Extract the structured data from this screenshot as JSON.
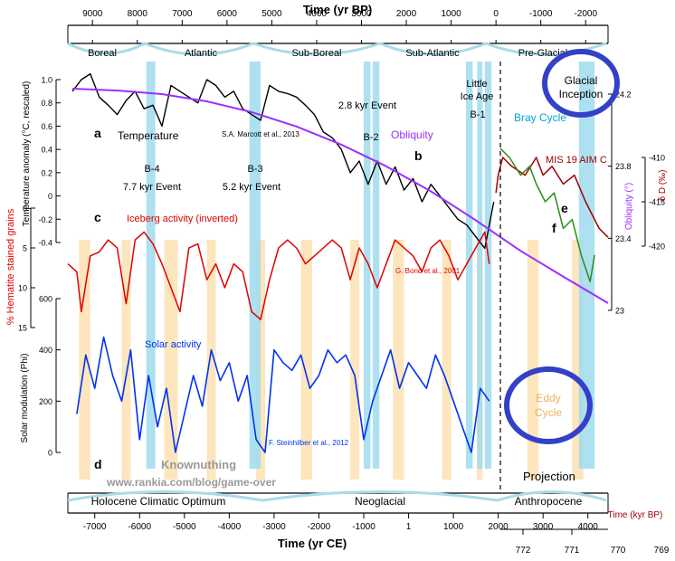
{
  "colors": {
    "temperature": "#000000",
    "obliquity": "#9b30ff",
    "iceberg": "#e00000",
    "solar": "#0033ee",
    "deuterium": "#a00000",
    "mis19_green": "#2e8b1f",
    "cold_event_band": "#9fdcee",
    "eddy_band": "#fde5bd",
    "highlight_circle": "#3340c8",
    "watermark": "#9a9a9a"
  },
  "labels": {
    "top_axis_title": "Time (yr BP)",
    "bottom_axis_title": "Time (yr CE)",
    "kyr_axis_title": "Time (kyr BP)",
    "temp_ylabel": "Temperature anomaly (°C, rescaled)",
    "hematite_ylabel": "% Hematite stained grains",
    "solar_ylabel": "Solar modulation (Phi)",
    "obliquity_ylabel": "Obliquity (°)",
    "deuterium_ylabel": "δ D (‰)",
    "panel_a": "a",
    "panel_b": "b",
    "panel_c": "c",
    "panel_d": "d",
    "panel_e": "e",
    "panel_f": "f",
    "temperature": "Temperature",
    "marcott": "S.A. Marcott et al., 2013",
    "obliquity": "Obliquity",
    "iceberg": "Iceberg activity (inverted)",
    "bond": "G. Bond et al., 2001",
    "solar": "Solar activity",
    "steinhilber": "F. Steinhilber et al., 2012",
    "b4": "B-4",
    "event_77": "7.7 kyr Event",
    "b3": "B-3",
    "event_52": "5.2 kyr Event",
    "event_28": "2.8 kyr Event",
    "b2": "B-2",
    "little_ice_age_1": "Little",
    "little_ice_age_2": "Ice Age",
    "b1": "B-1",
    "bray_cycle": "Bray Cycle",
    "mis19": "MIS 19 AIM C",
    "glacial_1": "Glacial",
    "glacial_2": "Inception",
    "eddy_1": "Eddy",
    "eddy_2": "Cycle",
    "projection": "Projection",
    "watermark_1": "Knownuthing",
    "watermark_2": "www.rankia.com/blog/game-over"
  },
  "periods_top": [
    "Boreal",
    "Atlantic",
    "Sub-Boreal",
    "Sub-Atlantic",
    "Pre-Glacial"
  ],
  "periods_bottom": [
    "Holocene Climatic Optimum",
    "Neoglacial",
    "Anthropocene"
  ],
  "chart_data": {
    "type": "line",
    "x_axis_bottom": {
      "title": "Time (yr CE)",
      "ticks": [
        -7000,
        -6000,
        -5000,
        -4000,
        -3000,
        -2000,
        -1000,
        1,
        1000,
        2000,
        3000,
        4000
      ],
      "tick_labels": [
        "-7000",
        "-6000",
        "-5000",
        "-4000",
        "-3000",
        "-2000",
        "-1000",
        "1",
        "1000",
        "2000",
        "3000",
        "4000"
      ],
      "xlim": [
        -7600,
        4450
      ]
    },
    "x_axis_top": {
      "title": "Time (yr BP)",
      "ticks": [
        9000,
        8000,
        7000,
        6000,
        5000,
        4000,
        3000,
        2000,
        1000,
        0,
        -1000,
        -2000
      ],
      "tick_labels": [
        "9000",
        "8000",
        "7000",
        "6000",
        "5000",
        "4000",
        "3000",
        "2000",
        "1000",
        "0",
        "-1000",
        "-2000"
      ]
    },
    "x_axis_kyr": {
      "title": "Time (kyr BP)",
      "ticks": [
        772,
        771,
        770,
        769
      ],
      "tick_labels": [
        "772",
        "771",
        "770",
        "769"
      ]
    },
    "y_axis_temperature": {
      "title": "Temperature anomaly (°C, rescaled)",
      "ticks": [
        1.0,
        0.8,
        0.6,
        0.4,
        0.2,
        0,
        -0.2,
        -0.4
      ],
      "tick_labels": [
        "1.0",
        "0.8",
        "0.6",
        "0.4",
        "0.2",
        "0",
        "-0.2",
        "-0.4"
      ]
    },
    "y_axis_hematite": {
      "title": "% Hematite stained grains",
      "ticks": [
        0,
        5,
        10,
        15
      ],
      "tick_labels": [
        "0",
        "5",
        "10",
        "15"
      ],
      "inverted": true
    },
    "y_axis_solar": {
      "title": "Solar modulation (Phi)",
      "ticks": [
        600,
        400,
        200,
        0
      ],
      "tick_labels": [
        "600",
        "400",
        "200",
        "0"
      ]
    },
    "y_axis_obliquity": {
      "title": "Obliquity (°)",
      "ticks": [
        24.2,
        23.8,
        23.4,
        23
      ],
      "tick_labels": [
        "24.2",
        "23.8",
        "23.4",
        "23"
      ]
    },
    "y_axis_deuterium": {
      "title": "δ D (‰)",
      "ticks": [
        -410,
        -415,
        -420
      ],
      "tick_labels": [
        "-410",
        "-415",
        "-420"
      ]
    },
    "cold_event_bands_yr_ce": [
      [
        -5850,
        -5650
      ],
      [
        -3550,
        -3300
      ],
      [
        -1000,
        -850
      ],
      [
        -800,
        -650
      ],
      [
        1280,
        1430
      ],
      [
        1530,
        1650
      ],
      [
        1700,
        1850
      ],
      [
        3800,
        4150
      ]
    ],
    "eddy_cycle_bands_yr_ce": [
      [
        -7350,
        -7100
      ],
      [
        -6400,
        -6200
      ],
      [
        -5450,
        -5150
      ],
      [
        -4500,
        -4300
      ],
      [
        -3400,
        -3200
      ],
      [
        -2400,
        -2150
      ],
      [
        -1300,
        -1100
      ],
      [
        -350,
        -100
      ],
      [
        750,
        950
      ],
      [
        1520,
        1650
      ],
      [
        2650,
        2900
      ],
      [
        3650,
        3900
      ]
    ],
    "series": [
      {
        "name": "Temperature",
        "axis": "temperature",
        "x": [
          -7500,
          -7300,
          -7100,
          -6900,
          -6700,
          -6500,
          -6300,
          -6100,
          -5900,
          -5700,
          -5500,
          -5300,
          -5100,
          -4900,
          -4700,
          -4500,
          -4300,
          -4100,
          -3900,
          -3700,
          -3500,
          -3300,
          -3100,
          -2900,
          -2700,
          -2500,
          -2300,
          -2100,
          -1900,
          -1700,
          -1500,
          -1300,
          -1100,
          -900,
          -700,
          -500,
          -300,
          -100,
          100,
          300,
          500,
          700,
          900,
          1100,
          1300,
          1500,
          1700,
          1900
        ],
        "y": [
          0.9,
          1.0,
          1.05,
          0.85,
          0.78,
          0.7,
          0.82,
          0.9,
          0.75,
          0.78,
          0.6,
          0.95,
          0.9,
          0.85,
          0.8,
          1.0,
          0.95,
          0.85,
          0.9,
          0.75,
          0.7,
          0.65,
          0.95,
          0.9,
          0.88,
          0.85,
          0.78,
          0.7,
          0.55,
          0.5,
          0.4,
          0.2,
          0.3,
          0.1,
          0.3,
          0.1,
          0.25,
          0.05,
          0.15,
          -0.05,
          0.1,
          0.0,
          -0.1,
          -0.2,
          -0.25,
          -0.35,
          -0.45,
          -0.05
        ]
      },
      {
        "name": "Obliquity",
        "axis": "obliquity",
        "x": [
          -7500,
          -6500,
          -5500,
          -4500,
          -3500,
          -2500,
          -1500,
          -500,
          500,
          1500,
          2500,
          3500,
          4450
        ],
        "y": [
          24.23,
          24.22,
          24.2,
          24.16,
          24.1,
          24.02,
          23.92,
          23.8,
          23.66,
          23.5,
          23.33,
          23.18,
          23.04
        ]
      },
      {
        "name": "Iceberg activity (inverted)",
        "axis": "hematite",
        "x": [
          -7600,
          -7400,
          -7300,
          -7100,
          -6900,
          -6700,
          -6500,
          -6300,
          -6100,
          -5900,
          -5700,
          -5500,
          -5300,
          -5100,
          -4900,
          -4700,
          -4500,
          -4300,
          -4100,
          -3900,
          -3700,
          -3500,
          -3300,
          -3100,
          -2900,
          -2700,
          -2500,
          -2300,
          -2100,
          -1900,
          -1700,
          -1500,
          -1300,
          -1100,
          -900,
          -700,
          -500,
          -300,
          -100,
          100,
          300,
          500,
          700,
          900,
          1100,
          1300,
          1500,
          1700,
          1800
        ],
        "y": [
          7,
          8,
          13,
          6,
          5.5,
          4,
          5,
          12,
          4,
          3,
          4.5,
          7,
          10,
          13,
          5,
          4.5,
          9,
          7,
          10,
          7,
          8,
          13,
          14,
          9,
          5,
          4,
          5,
          7,
          6,
          5,
          4,
          5,
          9,
          5,
          7,
          10,
          7,
          4,
          5,
          6,
          8,
          5,
          4,
          6,
          9,
          7,
          5,
          3,
          7
        ]
      },
      {
        "name": "Solar activity",
        "axis": "solar",
        "x": [
          -7400,
          -7200,
          -7000,
          -6800,
          -6600,
          -6400,
          -6200,
          -6000,
          -5800,
          -5600,
          -5400,
          -5200,
          -5000,
          -4800,
          -4600,
          -4400,
          -4200,
          -4000,
          -3800,
          -3600,
          -3400,
          -3200,
          -3000,
          -2800,
          -2600,
          -2400,
          -2200,
          -2000,
          -1800,
          -1600,
          -1400,
          -1200,
          -1000,
          -800,
          -600,
          -400,
          -200,
          0,
          200,
          400,
          600,
          800,
          1000,
          1200,
          1400,
          1600,
          1800
        ],
        "y": [
          150,
          380,
          250,
          450,
          300,
          200,
          400,
          50,
          300,
          100,
          250,
          0,
          150,
          300,
          180,
          400,
          280,
          350,
          200,
          300,
          50,
          0,
          400,
          350,
          320,
          380,
          250,
          300,
          400,
          350,
          380,
          300,
          50,
          200,
          300,
          400,
          250,
          350,
          300,
          250,
          380,
          300,
          200,
          100,
          0,
          250,
          200
        ]
      },
      {
        "name": "MIS 19 AIM C",
        "axis": "deuterium",
        "x": [
          1950,
          2000,
          2100,
          2300,
          2600,
          2850,
          3000,
          3200,
          3450,
          3700,
          3950,
          4250,
          4450
        ],
        "y": [
          -414,
          -412,
          -410,
          -411,
          -412,
          -410,
          -412,
          -411,
          -413,
          -412,
          -415,
          -418,
          -419
        ]
      },
      {
        "name": "MIS 19 projection",
        "axis": "deuterium",
        "x": [
          2050,
          2250,
          2500,
          2700,
          2850,
          3050,
          3250,
          3450,
          3650,
          3850,
          4050,
          4150
        ],
        "y": [
          -409,
          -410,
          -412,
          -411,
          -413,
          -415,
          -414,
          -418,
          -417,
          -421,
          -424,
          -421
        ]
      }
    ]
  }
}
